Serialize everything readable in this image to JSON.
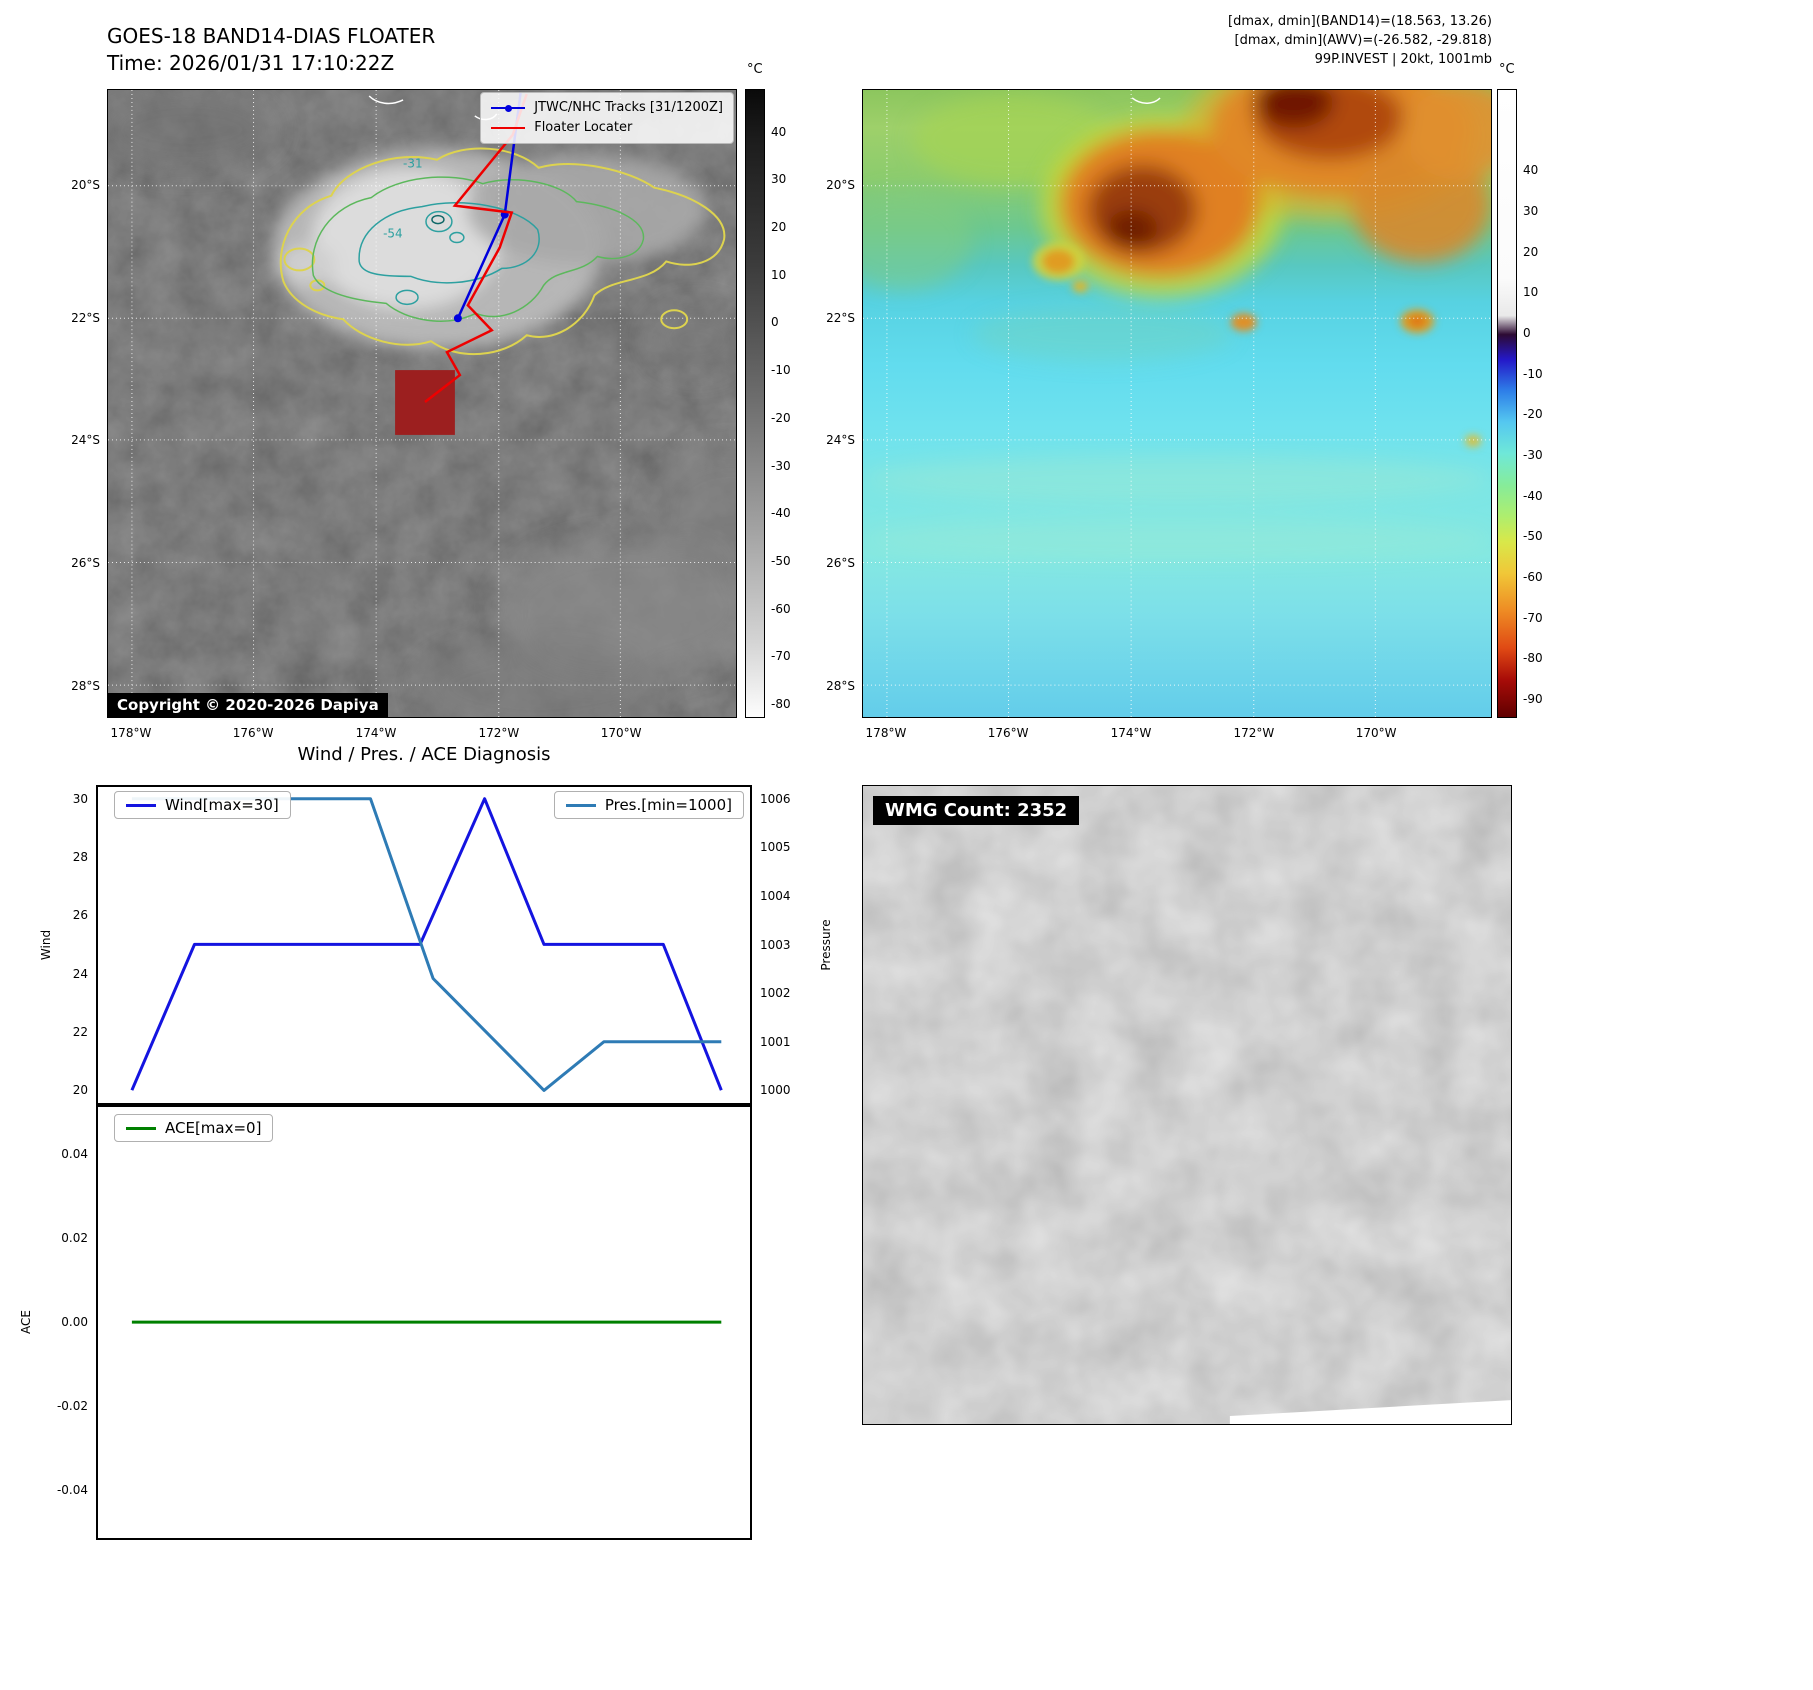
{
  "band14": {
    "title": "GOES-18 BAND14-DIAS FLOATER",
    "time_line": "Time: 2026/01/31 17:10:22Z",
    "legend": {
      "track_label": "JTWC/NHC Tracks [31/1200Z]",
      "track_color": "#0000dd",
      "floater_label": "Floater Locater",
      "floater_color": "#ee0000"
    },
    "floater_square_color": "#9c1f1f",
    "contour_labels": [
      "-31",
      "-54"
    ],
    "copyright": "Copyright © 2020-2026 Dapiya",
    "lat_ticks": [
      "20°S",
      "22°S",
      "24°S",
      "26°S",
      "28°S"
    ],
    "lon_ticks": [
      "178°W",
      "176°W",
      "174°W",
      "172°W",
      "170°W"
    ],
    "colorbar_unit": "°C",
    "colorbar_ticks": [
      "40",
      "30",
      "20",
      "10",
      "0",
      "-10",
      "-20",
      "-30",
      "-40",
      "-50",
      "-60",
      "-70",
      "-80"
    ]
  },
  "awv": {
    "header_lines": [
      "[dmax, dmin](BAND14)=(18.563, 13.26)",
      "[dmax, dmin](AWV)=(-26.582, -29.818)",
      "99P.INVEST | 20kt, 1001mb"
    ],
    "lat_ticks": [
      "20°S",
      "22°S",
      "24°S",
      "26°S",
      "28°S"
    ],
    "lon_ticks": [
      "178°W",
      "176°W",
      "174°W",
      "172°W",
      "170°W"
    ],
    "colorbar_unit": "°C",
    "colorbar_ticks": [
      "40",
      "30",
      "20",
      "10",
      "0",
      "-10",
      "-20",
      "-30",
      "-40",
      "-50",
      "-60",
      "-70",
      "-80",
      "-90"
    ]
  },
  "chart_data": [
    {
      "type": "line",
      "title": "Wind / Pres. / ACE Diagnosis",
      "axes": {
        "left_label": "Wind",
        "right_label": "Pressure",
        "left_ticks": [
          "30",
          "28",
          "26",
          "24",
          "22",
          "20"
        ],
        "right_ticks": [
          "1006",
          "1005",
          "1004",
          "1003",
          "1002",
          "1001",
          "1000"
        ],
        "left_range": [
          19.56,
          30.4
        ],
        "right_range": [
          999.74,
          1006.24
        ],
        "x_range": [
          0,
          1
        ],
        "grid": false,
        "legend_position": "inside top-left / top-right"
      },
      "series": [
        {
          "name": "Wind[max=30]",
          "axis": "left",
          "color": "#1414e0",
          "x": [
            0.052,
            0.148,
            0.494,
            0.593,
            0.684,
            0.867,
            0.956
          ],
          "y": [
            20,
            25,
            25,
            30,
            25,
            25,
            20
          ]
        },
        {
          "name": "Pres.[min=1000]",
          "axis": "right",
          "color": "#2e7bb5",
          "x": [
            0.052,
            0.418,
            0.514,
            0.684,
            0.776,
            0.956
          ],
          "y": [
            1006,
            1006,
            1002.3,
            1000,
            1001,
            1001
          ]
        }
      ]
    },
    {
      "type": "line",
      "title": "ACE",
      "axes": {
        "left_label": "ACE",
        "left_ticks": [
          "0.04",
          "0.02",
          "0.00",
          "-0.02",
          "-0.04"
        ],
        "left_range": [
          -0.0513,
          0.0511
        ],
        "x_range": [
          0,
          1
        ],
        "grid": false,
        "legend_position": "inside top-left"
      },
      "series": [
        {
          "name": "ACE[max=0]",
          "axis": "left",
          "color": "#008000",
          "x": [
            0.052,
            0.956
          ],
          "y": [
            0,
            0
          ]
        }
      ]
    }
  ],
  "wmg": {
    "count_label": "WMG Count: 2352"
  }
}
